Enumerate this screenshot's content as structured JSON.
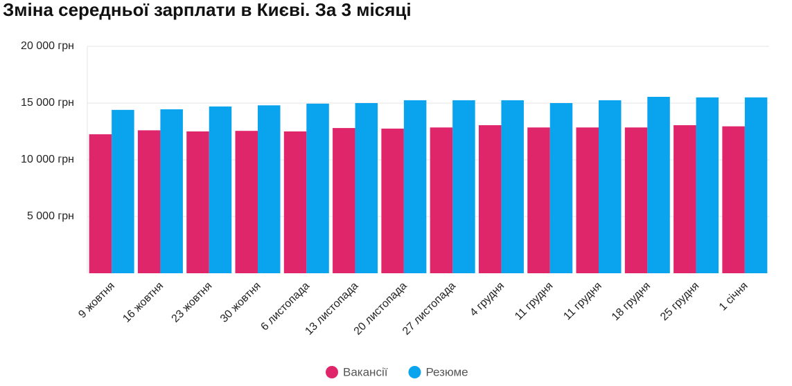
{
  "chart_data": {
    "type": "bar",
    "title": "Зміна середньої зарплати в Києві. За 3 місяці",
    "categories": [
      "9 жовтня",
      "16 жовтня",
      "23 жовтня",
      "30 жовтня",
      "6 листопада",
      "13 листопада",
      "20 листопада",
      "27 листопада",
      "4 грудня",
      "11 грудня",
      "11 грудня",
      "18 грудня",
      "25 грудня",
      "1 січня"
    ],
    "series": [
      {
        "name": "Вакансії",
        "color": "#e0266b",
        "values": [
          12250,
          12600,
          12500,
          12550,
          12500,
          12800,
          12750,
          12850,
          13050,
          12850,
          12850,
          12850,
          13050,
          12950
        ]
      },
      {
        "name": "Резюме",
        "color": "#0aa3ee",
        "values": [
          14400,
          14450,
          14700,
          14800,
          14950,
          15000,
          15250,
          15250,
          15250,
          15000,
          15250,
          15550,
          15500,
          15500
        ]
      }
    ],
    "ylim": [
      0,
      20000
    ],
    "yticks": [
      {
        "value": 5000,
        "label": "5 000 грн"
      },
      {
        "value": 10000,
        "label": "10 000 грн"
      },
      {
        "value": 15000,
        "label": "15 000 грн"
      },
      {
        "value": 20000,
        "label": "20 000 грн"
      }
    ],
    "grid": true,
    "legend": "bottom"
  }
}
